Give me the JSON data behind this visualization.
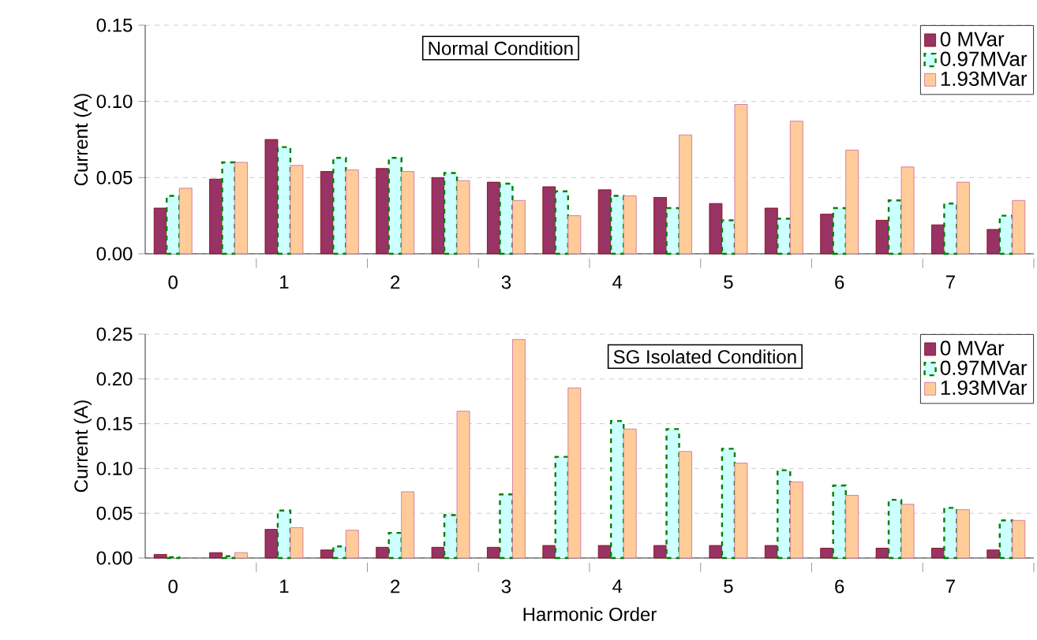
{
  "chart_data": [
    {
      "type": "bar",
      "title": "Normal Condition",
      "ylabel": "Current (A)",
      "categories": [
        "0",
        null,
        "1",
        null,
        "2",
        null,
        "3",
        null,
        "4",
        null,
        "5",
        null,
        "6",
        null,
        "7",
        null
      ],
      "series": [
        {
          "name": "0 MVar",
          "color": "#993366",
          "values": [
            0.03,
            0.049,
            0.075,
            0.054,
            0.056,
            0.05,
            0.047,
            0.044,
            0.042,
            0.037,
            0.033,
            0.03,
            0.026,
            0.022,
            0.019,
            0.016
          ]
        },
        {
          "name": "0.97MVar",
          "color": "#ccffff",
          "values": [
            0.038,
            0.06,
            0.07,
            0.063,
            0.063,
            0.053,
            0.046,
            0.041,
            0.038,
            0.03,
            0.022,
            0.023,
            0.03,
            0.035,
            0.033,
            0.025
          ]
        },
        {
          "name": "1.93MVar",
          "color": "#ffcc99",
          "values": [
            0.043,
            0.06,
            0.058,
            0.055,
            0.054,
            0.048,
            0.035,
            0.025,
            0.038,
            0.078,
            0.098,
            0.087,
            0.068,
            0.057,
            0.047,
            0.035
          ]
        }
      ],
      "ylim": [
        0,
        0.15
      ],
      "yticks": [
        {
          "value": 0,
          "label": "0.00"
        },
        {
          "value": 0.05,
          "label": "0.05"
        },
        {
          "value": 0.1,
          "label": "0.10"
        },
        {
          "value": 0.15,
          "label": "0.15"
        }
      ],
      "grid": "y",
      "legend": "top right"
    },
    {
      "type": "bar",
      "title": "SG Isolated Condition",
      "ylabel": "Current (A)",
      "xlabel": "Harmonic Order",
      "categories": [
        "0",
        null,
        "1",
        null,
        "2",
        null,
        "3",
        null,
        "4",
        null,
        "5",
        null,
        "6",
        null,
        "7",
        null
      ],
      "series": [
        {
          "name": "0 MVar",
          "color": "#993366",
          "values": [
            0.004,
            0.006,
            0.032,
            0.009,
            0.012,
            0.012,
            0.012,
            0.014,
            0.014,
            0.014,
            0.014,
            0.014,
            0.011,
            0.011,
            0.011,
            0.009
          ]
        },
        {
          "name": "0.97MVar",
          "color": "#ccffff",
          "values": [
            0.001,
            0.002,
            0.053,
            0.013,
            0.028,
            0.048,
            0.071,
            0.113,
            0.153,
            0.144,
            0.122,
            0.098,
            0.081,
            0.065,
            0.056,
            0.042
          ]
        },
        {
          "name": "1.93MVar",
          "color": "#ffcc99",
          "values": [
            null,
            0.006,
            0.034,
            0.031,
            0.074,
            0.164,
            0.244,
            0.19,
            0.144,
            0.119,
            0.106,
            0.085,
            0.07,
            0.06,
            0.054,
            0.042
          ]
        }
      ],
      "ylim": [
        0,
        0.25
      ],
      "yticks": [
        {
          "value": 0,
          "label": "0.00"
        },
        {
          "value": 0.05,
          "label": "0.05"
        },
        {
          "value": 0.1,
          "label": "0.10"
        },
        {
          "value": 0.15,
          "label": "0.15"
        },
        {
          "value": 0.2,
          "label": "0.20"
        },
        {
          "value": 0.25,
          "label": "0.25"
        }
      ],
      "grid": "y",
      "legend": "top right"
    }
  ]
}
